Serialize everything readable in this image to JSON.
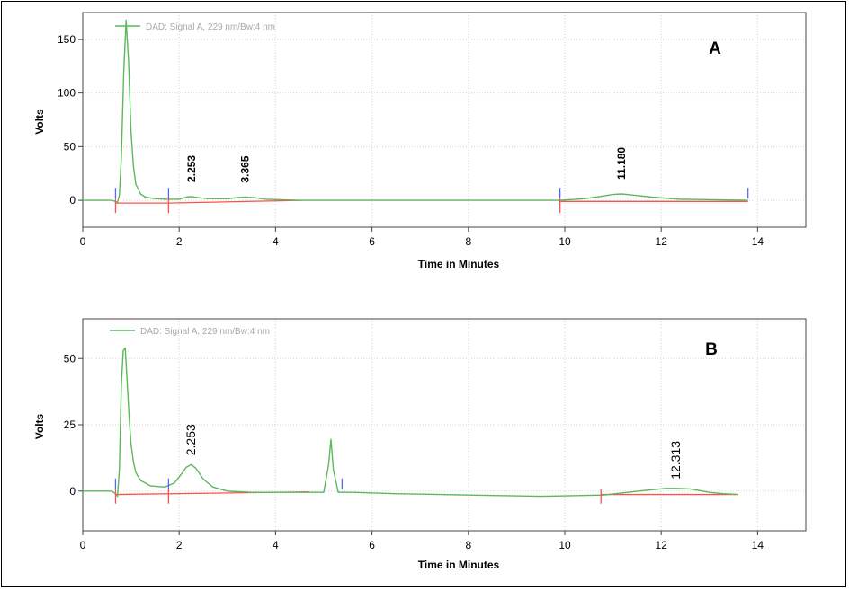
{
  "chart_data": [
    {
      "type": "line",
      "panel_letter": "A",
      "legend": "DAD: Signal A, 229 nm/Bw:4 nm",
      "xlabel": "Time in Minutes",
      "ylabel": "Volts",
      "xlim": [
        0,
        15
      ],
      "ylim": [
        -25,
        175
      ],
      "xticks": [
        "0",
        "2",
        "4",
        "6",
        "8",
        "10",
        "12",
        "14"
      ],
      "yticks": [
        "0",
        "50",
        "100",
        "150"
      ],
      "grid": true,
      "colors": {
        "signal": "#5cb85c",
        "baseline": "#ff5050",
        "marker": "#4a6cff"
      },
      "series": [
        {
          "x": [
            0,
            0.6,
            0.68,
            0.72,
            0.76,
            0.8,
            0.85,
            0.9,
            0.95,
            1.0,
            1.05,
            1.1,
            1.2,
            1.3,
            1.5,
            1.75,
            2.0,
            2.15,
            2.25,
            2.4,
            2.6,
            3.0,
            3.2,
            3.365,
            3.55,
            3.8,
            4.5,
            6,
            8,
            9.9,
            10.4,
            10.8,
            11.0,
            11.18,
            11.4,
            11.8,
            12.4,
            13.8
          ],
          "y": [
            0,
            0,
            -1,
            -2,
            5,
            40,
            120,
            168,
            130,
            65,
            32,
            15,
            6,
            3,
            1.5,
            1,
            1,
            3,
            3.5,
            2.5,
            1.5,
            1.5,
            2.5,
            3,
            2.5,
            1,
            0,
            0,
            0,
            0,
            1.5,
            4,
            5.5,
            6,
            5,
            3,
            1,
            0
          ]
        }
      ],
      "baselines": [
        {
          "x": [
            0.68,
            1.78
          ],
          "y": [
            -2.5,
            -2.5
          ]
        },
        {
          "x": [
            1.78,
            4.55
          ],
          "y": [
            -2.5,
            0
          ]
        },
        {
          "x": [
            9.9,
            13.8
          ],
          "y": [
            -1,
            -1
          ]
        }
      ],
      "integration_marks": [
        {
          "x": 0.68,
          "color": "#ff5050",
          "dir": "down"
        },
        {
          "x": 0.68,
          "color": "#4a6cff",
          "dir": "up"
        },
        {
          "x": 1.78,
          "color": "#ff5050",
          "dir": "down"
        },
        {
          "x": 1.78,
          "color": "#4a6cff",
          "dir": "up"
        },
        {
          "x": 9.9,
          "color": "#ff5050",
          "dir": "down"
        },
        {
          "x": 9.9,
          "color": "#4a6cff",
          "dir": "up"
        },
        {
          "x": 13.8,
          "color": "#4a6cff",
          "dir": "up"
        }
      ],
      "annotations": [
        {
          "x": 2.253,
          "y": 3.5,
          "text": "2.253"
        },
        {
          "x": 3.365,
          "y": 3,
          "text": "3.365"
        },
        {
          "x": 11.18,
          "y": 6,
          "text": "11.180"
        }
      ]
    },
    {
      "type": "line",
      "panel_letter": "B",
      "legend": "DAD: Signal A, 229 nm/Bw:4 nm",
      "xlabel": "Time in Minutes",
      "ylabel": "Volts",
      "xlim": [
        0,
        15
      ],
      "ylim": [
        -15,
        65
      ],
      "xticks": [
        "0",
        "2",
        "4",
        "6",
        "8",
        "10",
        "12",
        "14"
      ],
      "yticks": [
        "0",
        "25",
        "50"
      ],
      "grid": true,
      "colors": {
        "signal": "#5cb85c",
        "baseline": "#ff5050",
        "marker": "#4a6cff"
      },
      "series": [
        {
          "x": [
            0,
            0.6,
            0.68,
            0.72,
            0.76,
            0.8,
            0.84,
            0.88,
            0.92,
            0.96,
            1.0,
            1.05,
            1.1,
            1.2,
            1.4,
            1.7,
            1.9,
            2.05,
            2.15,
            2.253,
            2.35,
            2.5,
            2.7,
            3.0,
            3.5,
            4.7,
            5.0,
            5.1,
            5.15,
            5.2,
            5.3,
            5.6,
            6.5,
            8,
            9.5,
            10.8,
            11.3,
            11.8,
            12.1,
            12.313,
            12.6,
            13.0,
            13.3,
            13.6
          ],
          "y": [
            0,
            0,
            -1,
            -2,
            8,
            40,
            53,
            54,
            42,
            28,
            18,
            11,
            7,
            4,
            2,
            1.5,
            3,
            6.5,
            9,
            10,
            8.5,
            4.5,
            1.5,
            0,
            -0.5,
            -0.5,
            -0.5,
            10,
            19.5,
            8,
            -0.5,
            -0.5,
            -1,
            -1.5,
            -2,
            -1.5,
            -0.5,
            0.5,
            1,
            1,
            0.8,
            -0.5,
            -1,
            -1.3
          ]
        }
      ],
      "baselines": [
        {
          "x": [
            0.68,
            4.7
          ],
          "y": [
            -1.3,
            -0.3
          ]
        },
        {
          "x": [
            10.75,
            13.6
          ],
          "y": [
            -1.3,
            -1.3
          ]
        }
      ],
      "integration_marks": [
        {
          "x": 0.68,
          "color": "#ff5050",
          "dir": "down"
        },
        {
          "x": 0.68,
          "color": "#4a6cff",
          "dir": "up"
        },
        {
          "x": 1.78,
          "color": "#ff5050",
          "dir": "down"
        },
        {
          "x": 1.78,
          "color": "#4a6cff",
          "dir": "up"
        },
        {
          "x": 5.38,
          "color": "#4a6cff",
          "dir": "up"
        },
        {
          "x": 10.75,
          "color": "#ff5050",
          "dir": "down"
        }
      ],
      "annotations": [
        {
          "x": 2.253,
          "y": 10,
          "text": "2.253"
        },
        {
          "x": 12.313,
          "y": 1,
          "text": "12.313"
        }
      ]
    }
  ]
}
